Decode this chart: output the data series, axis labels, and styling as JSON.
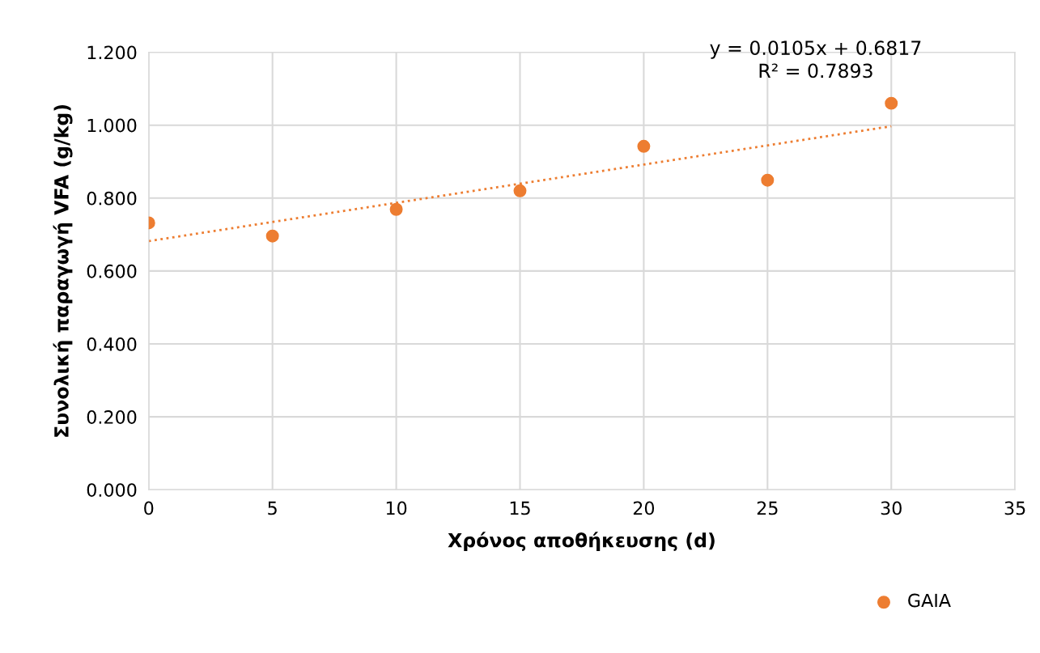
{
  "chart_data": {
    "type": "scatter",
    "xlabel": "Χρόνος αποθήκευσης (d)",
    "ylabel": "Συνολική παραγωγή VFA (g/kg)",
    "x": [
      0,
      5,
      10,
      15,
      20,
      25,
      30
    ],
    "series": [
      {
        "name": "GAIA",
        "color": "#ed7d31",
        "values": [
          0.732,
          0.696,
          0.769,
          0.82,
          0.942,
          0.849,
          1.06
        ],
        "marker": "circle"
      },
      {
        "type": "line",
        "x": [
          0,
          30
        ],
        "color": "#ed7d31",
        "values": [
          0.682,
          0.997
        ],
        "line_style": "dotted"
      }
    ],
    "annotations": [
      "y = 0.0105x + 0.6817\nR² = 0.7893"
    ],
    "xlim": [
      0,
      35
    ],
    "xticks": [
      0,
      5,
      10,
      15,
      20,
      25,
      30,
      35
    ],
    "ylim": [
      0,
      1.2
    ],
    "yticks": [
      {
        "value": 0,
        "label": "0.000"
      },
      {
        "value": 0.2,
        "label": "0.200"
      },
      {
        "value": 0.4,
        "label": "0.400"
      },
      {
        "value": 0.6,
        "label": "0.600"
      },
      {
        "value": 0.8,
        "label": "0.800"
      },
      {
        "value": 1.0,
        "label": "1.000"
      },
      {
        "value": 1.2,
        "label": "1.200"
      }
    ],
    "grid": true,
    "legend": "bottom right"
  }
}
